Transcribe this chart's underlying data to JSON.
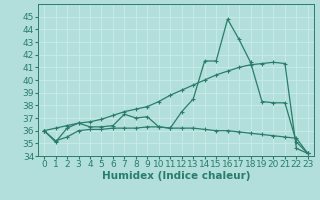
{
  "xlabel": "Humidex (Indice chaleur)",
  "x": [
    0,
    1,
    2,
    3,
    4,
    5,
    6,
    7,
    8,
    9,
    10,
    11,
    12,
    13,
    14,
    15,
    16,
    17,
    18,
    19,
    20,
    21,
    22,
    23
  ],
  "line_spiky": [
    36.0,
    35.1,
    36.2,
    36.6,
    36.3,
    36.3,
    36.4,
    37.3,
    37.0,
    37.1,
    36.3,
    36.2,
    37.5,
    38.5,
    41.5,
    41.5,
    44.8,
    43.2,
    41.4,
    38.3,
    38.2,
    38.2,
    35.1,
    34.2
  ],
  "line_smooth": [
    36.0,
    36.2,
    36.4,
    36.6,
    36.7,
    36.9,
    37.2,
    37.5,
    37.7,
    37.9,
    38.3,
    38.8,
    39.2,
    39.6,
    40.0,
    40.4,
    40.7,
    41.0,
    41.2,
    41.3,
    41.4,
    41.3,
    34.6,
    34.2
  ],
  "line_flat": [
    36.0,
    35.2,
    35.5,
    36.0,
    36.1,
    36.1,
    36.2,
    36.2,
    36.2,
    36.3,
    36.3,
    36.2,
    36.2,
    36.2,
    36.1,
    36.0,
    36.0,
    35.9,
    35.8,
    35.7,
    35.6,
    35.5,
    35.4,
    34.2
  ],
  "ylim": [
    34,
    46
  ],
  "xlim": [
    -0.5,
    23.5
  ],
  "color": "#2a7d6a",
  "bg_color": "#b2dfdb",
  "grid_color": "#c8ecea",
  "tick_fontsize": 6.5,
  "label_fontsize": 7.5
}
